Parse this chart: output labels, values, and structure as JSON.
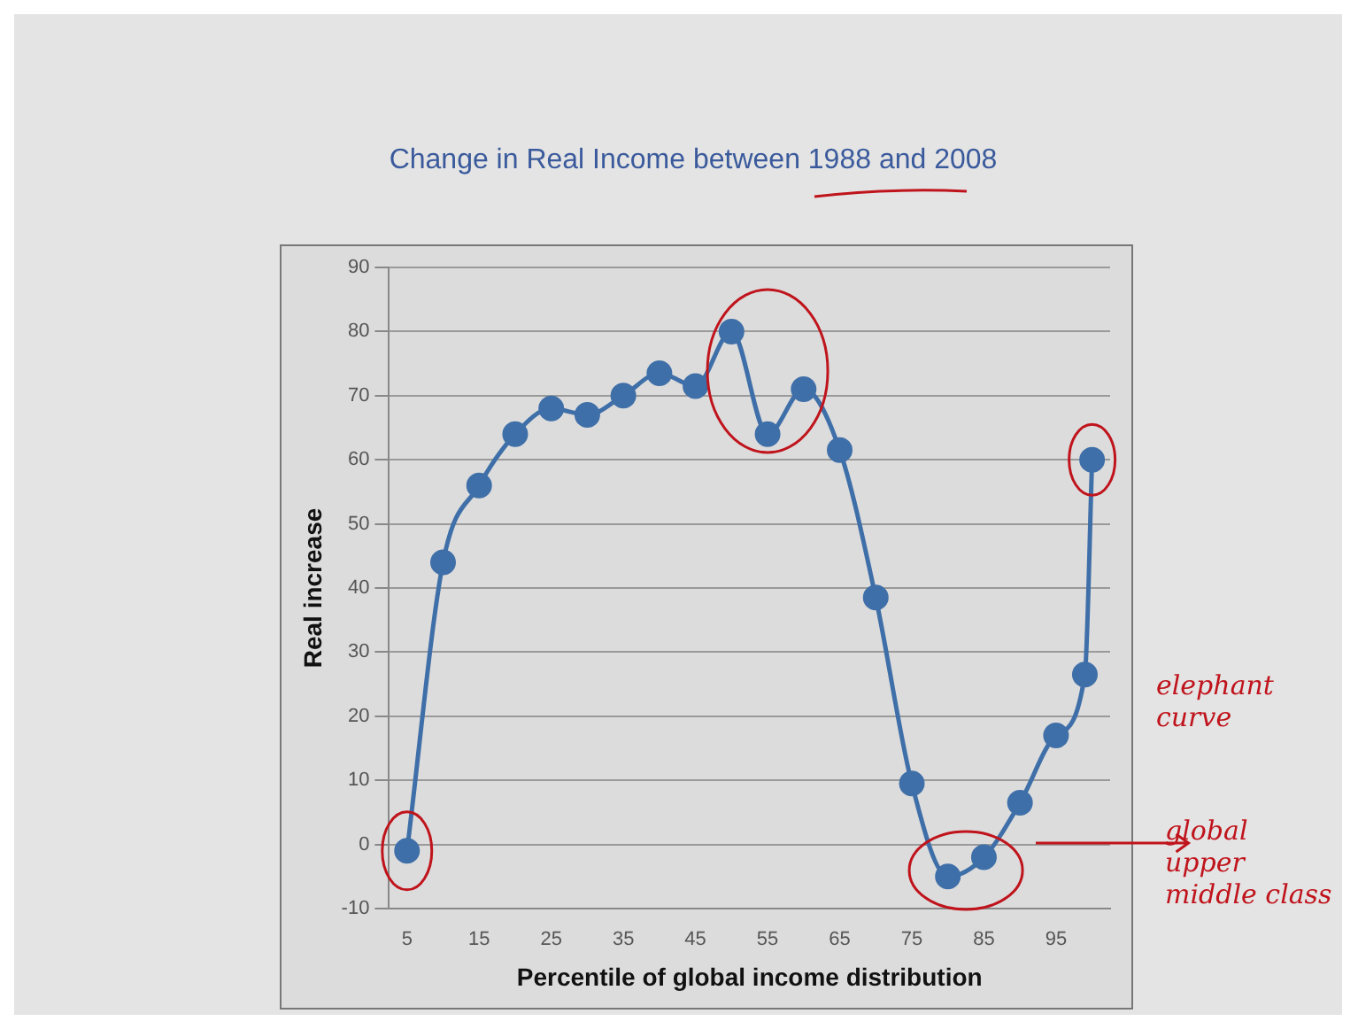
{
  "chart_data": {
    "type": "line",
    "title": "Change in Real Income between 1988 and 2008",
    "xlabel": "Percentile of global income distribution",
    "ylabel": "Real increase",
    "x": [
      5,
      10,
      15,
      20,
      25,
      30,
      35,
      40,
      45,
      50,
      55,
      60,
      65,
      70,
      75,
      80,
      85,
      90,
      95,
      99,
      100
    ],
    "series": [
      {
        "color": "#3f6fa8",
        "values": [
          -1,
          44,
          56,
          64,
          68,
          67,
          70,
          73.5,
          71.5,
          80,
          64,
          71,
          61.5,
          38.5,
          9.5,
          -5,
          -2,
          6.5,
          17,
          26.5,
          60
        ]
      }
    ],
    "xlim": [
      2.5,
      102.5
    ],
    "xticks": [
      5,
      15,
      25,
      35,
      45,
      55,
      65,
      75,
      85,
      95
    ],
    "ylim": [
      -10,
      90
    ],
    "yticks": [
      -10,
      0,
      10,
      20,
      30,
      40,
      50,
      60,
      70,
      80,
      90
    ],
    "grid": "y",
    "legend": false,
    "marker": "circle",
    "line_style": "solid",
    "annotations": [
      "elephant curve",
      "global upper middle class"
    ]
  }
}
